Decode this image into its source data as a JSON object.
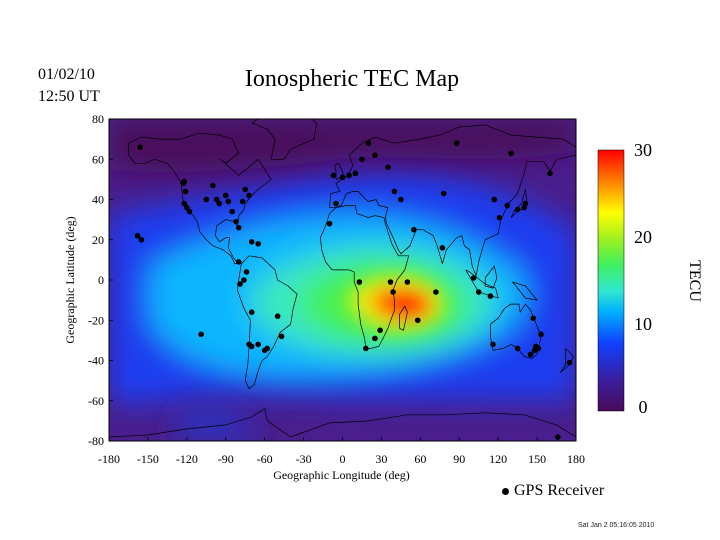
{
  "header": {
    "date": "01/02/10",
    "time": "12:50 UT"
  },
  "chart_data": {
    "type": "heatmap",
    "title": "Ionospheric TEC Map",
    "xlabel": "Geographic Longitude (deg)",
    "ylabel": "Geographic Latitude (deg)",
    "xlim": [
      -180,
      180
    ],
    "ylim": [
      -80,
      80
    ],
    "xticks": [
      -180,
      -150,
      -120,
      -90,
      -60,
      -30,
      0,
      30,
      60,
      90,
      120,
      150,
      180
    ],
    "yticks": [
      80,
      60,
      40,
      20,
      0,
      -20,
      -40,
      -60,
      -80
    ],
    "colorbar": {
      "label": "TECU",
      "range": [
        0,
        30
      ],
      "ticks": [
        30,
        20,
        10,
        0
      ],
      "colors": [
        "#4a0a5a",
        "#3a1fa0",
        "#1040ff",
        "#00b0ff",
        "#30e8d0",
        "#40f060",
        "#a0f020",
        "#ffff00",
        "#ff8000",
        "#ff0000"
      ]
    },
    "tec_peaks": [
      {
        "lon": 45,
        "lat": -12,
        "tec": 30
      },
      {
        "lon": 30,
        "lat": -10,
        "tec": 24
      },
      {
        "lon": 10,
        "lat": 0,
        "tec": 18
      },
      {
        "lon": -40,
        "lat": -15,
        "tec": 12
      },
      {
        "lon": 90,
        "lat": -5,
        "tec": 12
      },
      {
        "lon": 0,
        "lat": -45,
        "tec": 10
      }
    ],
    "receivers": {
      "legend": "GPS Receiver",
      "points": [
        [
          -156,
          66
        ],
        [
          -158,
          22
        ],
        [
          -155,
          20
        ],
        [
          -122,
          49
        ],
        [
          -123,
          48
        ],
        [
          -121,
          44
        ],
        [
          -122,
          38
        ],
        [
          -120,
          36
        ],
        [
          -118,
          34
        ],
        [
          -105,
          40
        ],
        [
          -100,
          47
        ],
        [
          -97,
          40
        ],
        [
          -95,
          38
        ],
        [
          -90,
          42
        ],
        [
          -88,
          39
        ],
        [
          -85,
          34
        ],
        [
          -82,
          29
        ],
        [
          -80,
          26
        ],
        [
          -77,
          39
        ],
        [
          -75,
          45
        ],
        [
          -72,
          42
        ],
        [
          -70,
          19
        ],
        [
          -65,
          18
        ],
        [
          -80,
          9
        ],
        [
          -74,
          4
        ],
        [
          -76,
          0
        ],
        [
          -79,
          -2
        ],
        [
          -70,
          -16
        ],
        [
          -72,
          -32
        ],
        [
          -70,
          -33
        ],
        [
          -65,
          -32
        ],
        [
          -60,
          -35
        ],
        [
          -58,
          -34
        ],
        [
          -50,
          -18
        ],
        [
          -47,
          -28
        ],
        [
          -109,
          -27
        ],
        [
          -5,
          38
        ],
        [
          -10,
          28
        ],
        [
          -7,
          52
        ],
        [
          0,
          51
        ],
        [
          5,
          52
        ],
        [
          10,
          53
        ],
        [
          15,
          60
        ],
        [
          20,
          68
        ],
        [
          25,
          62
        ],
        [
          35,
          56
        ],
        [
          40,
          44
        ],
        [
          45,
          40
        ],
        [
          55,
          25
        ],
        [
          50,
          -1
        ],
        [
          37,
          -1
        ],
        [
          39,
          -6
        ],
        [
          29,
          -25
        ],
        [
          25,
          -29
        ],
        [
          18,
          -34
        ],
        [
          13,
          -1
        ],
        [
          58,
          -20
        ],
        [
          72,
          -6
        ],
        [
          77,
          16
        ],
        [
          78,
          43
        ],
        [
          88,
          68
        ],
        [
          117,
          40
        ],
        [
          121,
          31
        ],
        [
          127,
          37
        ],
        [
          135,
          35
        ],
        [
          140,
          36
        ],
        [
          141,
          38
        ],
        [
          130,
          63
        ],
        [
          160,
          53
        ],
        [
          114,
          -8
        ],
        [
          105,
          -6
        ],
        [
          101,
          1
        ],
        [
          116,
          -32
        ],
        [
          135,
          -34
        ],
        [
          145,
          -37
        ],
        [
          148,
          -35
        ],
        [
          149,
          -33
        ],
        [
          151,
          -34
        ],
        [
          147,
          -19
        ],
        [
          153,
          -27
        ],
        [
          175,
          -41
        ],
        [
          166,
          -78
        ]
      ]
    }
  }
}
